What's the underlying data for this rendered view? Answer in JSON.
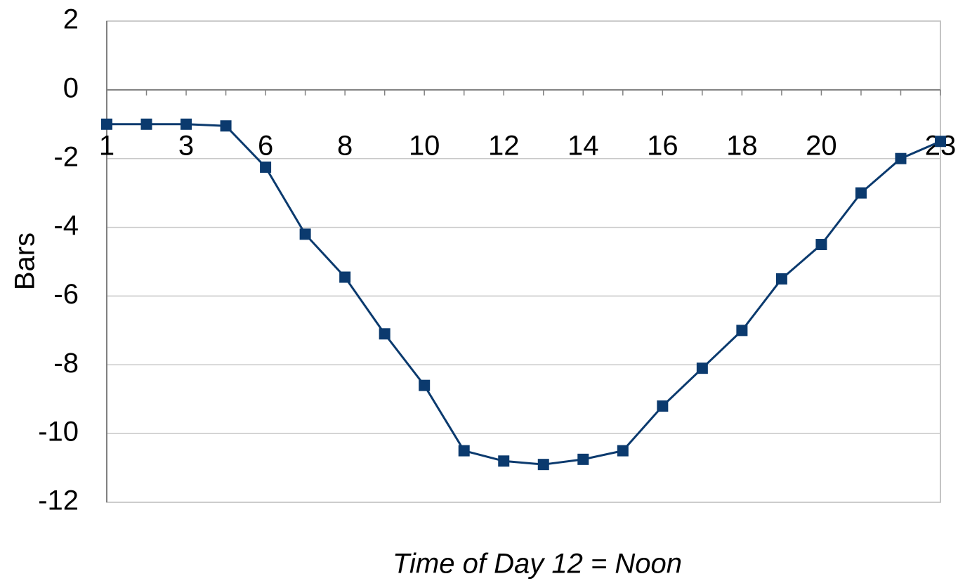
{
  "chart_data": {
    "type": "line",
    "x_label": "Time of Day 12 = Noon",
    "y_label": "Bars",
    "categories": [
      "1",
      null,
      "3",
      null,
      "6",
      null,
      "8",
      null,
      "10",
      null,
      "12",
      null,
      "14",
      null,
      "16",
      null,
      "18",
      null,
      "20",
      null,
      null,
      "23"
    ],
    "series": [
      {
        "name": "Bars",
        "color": "#0b3a6e",
        "values": [
          -1,
          -1,
          -1,
          -1.05,
          -2.25,
          -4.2,
          -5.45,
          -7.1,
          -8.6,
          -10.5,
          -10.8,
          -10.9,
          -10.75,
          -10.5,
          -9.2,
          -8.1,
          -7,
          -5.5,
          -4.5,
          -3,
          -2,
          -1.5
        ]
      }
    ],
    "ylim": [
      -12,
      2
    ],
    "yticks": [
      -12,
      -10,
      -8,
      -6,
      -4,
      -2,
      0,
      2
    ],
    "grid": true
  }
}
